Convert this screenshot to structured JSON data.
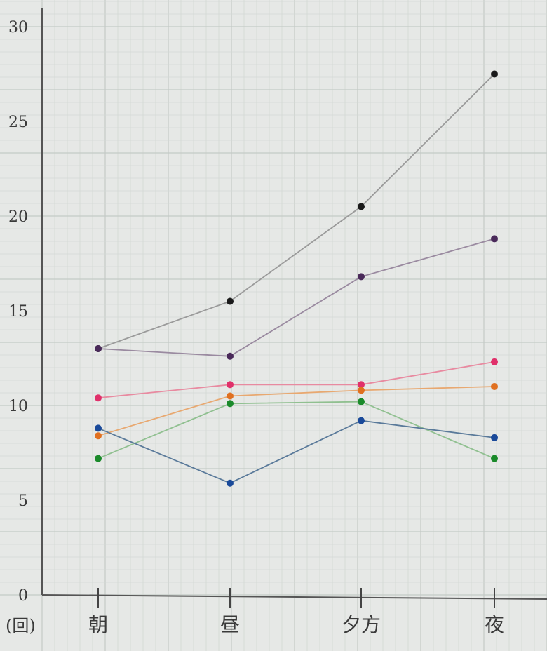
{
  "chart_data": {
    "type": "line",
    "title": "",
    "xlabel": "",
    "ylabel": "",
    "unit_label": "(回)",
    "categories": [
      "朝",
      "昼",
      "夕方",
      "夜"
    ],
    "y_ticks": [
      "0",
      "5",
      "10",
      "15",
      "20",
      "25",
      "30"
    ],
    "ylim": [
      0,
      30
    ],
    "grid": true,
    "series": [
      {
        "color": "#1a1a1a",
        "line_color": "#9a9a9a",
        "values": [
          13.0,
          15.5,
          20.5,
          27.5
        ]
      },
      {
        "color": "#4a2a5a",
        "line_color": "#9a8aa0",
        "values": [
          13.0,
          12.6,
          16.8,
          18.8
        ]
      },
      {
        "color": "#e0306a",
        "line_color": "#e88aa0",
        "values": [
          10.4,
          11.1,
          11.1,
          12.3
        ]
      },
      {
        "color": "#e07020",
        "line_color": "#e8a870",
        "values": [
          8.4,
          10.5,
          10.8,
          11.0
        ]
      },
      {
        "color": "#1a8a2a",
        "line_color": "#90c090",
        "values": [
          7.2,
          10.1,
          10.2,
          7.2
        ]
      },
      {
        "color": "#1a4a9a",
        "line_color": "#5a7a9a",
        "values": [
          8.8,
          5.9,
          9.2,
          8.3
        ]
      }
    ]
  }
}
